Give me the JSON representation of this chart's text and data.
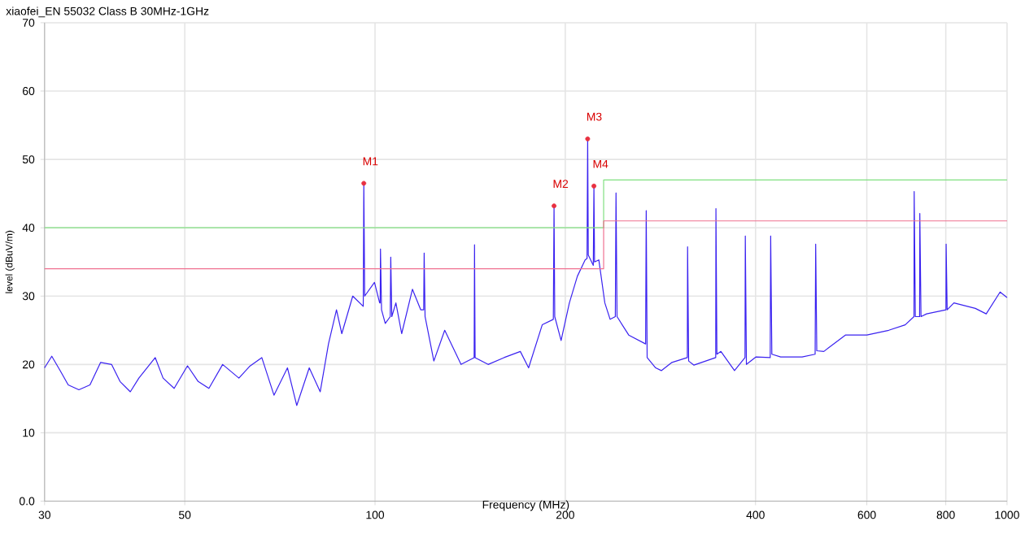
{
  "chart_data": {
    "type": "line",
    "title": "xiaofei_EN 55032 Class B 30MHz-1GHz",
    "xlabel": "Frequency (MHz)",
    "ylabel": "level (dBuV/m)",
    "log": "x",
    "grid": true,
    "xlim": [
      30,
      1000
    ],
    "xticks": [
      30,
      50,
      100,
      200,
      400,
      600,
      800,
      1000
    ],
    "ylim": [
      0,
      70
    ],
    "yticks": [
      {
        "value": 0,
        "label": "0.0"
      },
      10,
      20,
      30,
      40,
      50,
      60,
      70
    ],
    "series": [
      {
        "color": "#3a22f0",
        "x": [
          30,
          30.8,
          31.8,
          32.7,
          34,
          35.4,
          36.8,
          38.3,
          39.5,
          41,
          42.3,
          44.9,
          46.2,
          48.1,
          50.5,
          52.5,
          54.6,
          57.4,
          60.9,
          63.3,
          66.2,
          69.2,
          72.7,
          75.2,
          78.7,
          81.9,
          84.4,
          86.9,
          88.6,
          92.2,
          95.8,
          96,
          96.3,
          99.8,
          101.7,
          101.9,
          102,
          102.4,
          103.8,
          105.7,
          105.9,
          106.3,
          107.9,
          110.2,
          114.6,
          118.1,
          119.4,
          119.6,
          120,
          123.9,
          128.9,
          136.8,
          143.5,
          143.7,
          144,
          151,
          160,
          169.8,
          175,
          183.9,
          191.5,
          192,
          192.5,
          197,
          203,
          209,
          215,
          216.5,
          217,
          217.5,
          221.5,
          222,
          222.5,
          226,
          231,
          235.5,
          240,
          240.6,
          241.5,
          252,
          268,
          268.6,
          269.5,
          278,
          283.8,
          295,
          312,
          312.3,
          313.5,
          319.6,
          346,
          346.3,
          347.5,
          352.6,
          370.5,
          385,
          385.4,
          387,
          400.8,
          422,
          422.7,
          424.5,
          438.4,
          474,
          497,
          498,
          500,
          513,
          555,
          600.2,
          650,
          690,
          712.5,
          713,
          716,
          727.3,
          727.8,
          731,
          746,
          800.5,
          801,
          804,
          824,
          891,
          927,
          975,
          1000
        ],
        "values": [
          19.5,
          21.2,
          19,
          17,
          16.3,
          17,
          20.3,
          20,
          17.5,
          16,
          18,
          21,
          18,
          16.5,
          19.8,
          17.5,
          16.5,
          20,
          18,
          19.7,
          21,
          15.5,
          19.5,
          14,
          19.5,
          16,
          23,
          28,
          24.5,
          30,
          28.5,
          46.5,
          30,
          32,
          29,
          29,
          36.9,
          28,
          26,
          27,
          35.7,
          27,
          29,
          24.5,
          31,
          28,
          28,
          36.3,
          27,
          20.5,
          25,
          20,
          21,
          37.5,
          21,
          20,
          21,
          21.9,
          19.5,
          25.8,
          26.6,
          43.2,
          27,
          23.5,
          29,
          32.9,
          35.3,
          35.5,
          53,
          36,
          34.5,
          46.1,
          35,
          35.3,
          29,
          26.6,
          27,
          45.1,
          27,
          24.3,
          23,
          42.5,
          21,
          19.5,
          19.1,
          20.3,
          21,
          37.2,
          20.5,
          19.9,
          21,
          42.8,
          21.5,
          21.9,
          19.1,
          21,
          38.8,
          20,
          21.1,
          21,
          38.8,
          21.5,
          21.1,
          21.1,
          21.5,
          37.6,
          22,
          21.9,
          24.3,
          24.3,
          25,
          25.8,
          27,
          45.3,
          27,
          27,
          42.1,
          27,
          27.4,
          28,
          37.6,
          28,
          29,
          28.2,
          27.4,
          30.6,
          29.8
        ]
      },
      {
        "color": "#80e080",
        "x": [
          30,
          230,
          230,
          1000
        ],
        "values": [
          40,
          40,
          47,
          47
        ]
      },
      {
        "color": "#f07090",
        "x": [
          30,
          230,
          230,
          1000
        ],
        "values": [
          34,
          34,
          41,
          41
        ]
      },
      {
        "type": "scatter",
        "color": "#e83040",
        "marker": "circle",
        "x": [
          96,
          192,
          217,
          222
        ],
        "values": [
          46.5,
          43.2,
          53,
          46.1
        ]
      }
    ],
    "annotations": [
      {
        "text": "M1",
        "x": 96,
        "y": 46.5
      },
      {
        "text": "M2",
        "x": 192,
        "y": 43.2
      },
      {
        "text": "M3",
        "x": 217,
        "y": 53
      },
      {
        "text": "M4",
        "x": 222,
        "y": 46.1
      }
    ]
  }
}
